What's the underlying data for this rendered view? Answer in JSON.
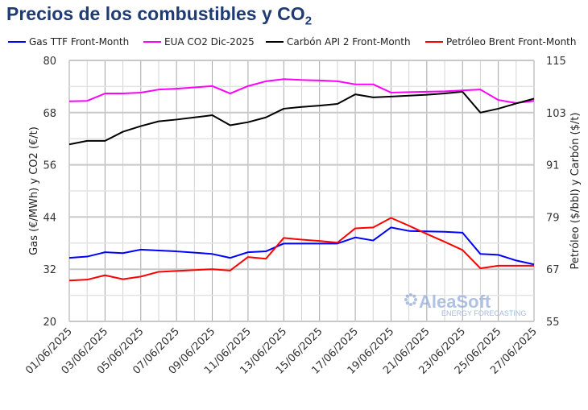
{
  "chart_data": {
    "type": "line",
    "title": "Precios de los combustibles y CO",
    "title_sub": "2",
    "ylabel_left": "Gas (€/MWh) y CO2 (€/t)",
    "ylabel_right": "Petróleo ($/bbl) y Carbón ($/t)",
    "ylim_left": [
      20,
      80
    ],
    "ylim_right": [
      55,
      115
    ],
    "yticks_left": [
      "20",
      "32",
      "44",
      "56",
      "68",
      "80"
    ],
    "yticks_right": [
      "55",
      "67",
      "79",
      "91",
      "103",
      "115"
    ],
    "grid": true,
    "legend_position": "top",
    "x": [
      "01/06/2025",
      "02/06/2025",
      "03/06/2025",
      "04/06/2025",
      "05/06/2025",
      "06/06/2025",
      "07/06/2025",
      "08/06/2025",
      "09/06/2025",
      "10/06/2025",
      "11/06/2025",
      "12/06/2025",
      "13/06/2025",
      "14/06/2025",
      "15/06/2025",
      "16/06/2025",
      "17/06/2025",
      "18/06/2025",
      "19/06/2025",
      "20/06/2025",
      "21/06/2025",
      "22/06/2025",
      "23/06/2025",
      "24/06/2025",
      "25/06/2025",
      "26/06/2025",
      "27/06/2025"
    ],
    "xtick_labels": [
      "01/06/2025",
      "03/06/2025",
      "05/06/2025",
      "07/06/2025",
      "09/06/2025",
      "11/06/2025",
      "13/06/2025",
      "15/06/2025",
      "17/06/2025",
      "19/06/2025",
      "21/06/2025",
      "23/06/2025",
      "25/06/2025",
      "27/06/2025"
    ],
    "series": [
      {
        "name": "Gas TTF Front-Month",
        "axis": "left",
        "color": "#0000ff",
        "values": [
          34.6,
          34.9,
          35.9,
          35.7,
          36.5,
          36.3,
          36.1,
          35.8,
          35.5,
          34.6,
          35.9,
          36.1,
          37.9,
          37.9,
          37.9,
          37.9,
          39.3,
          38.6,
          41.6,
          40.8,
          40.7,
          40.6,
          40.4,
          35.5,
          35.3,
          34.0,
          33.1
        ]
      },
      {
        "name": "EUA CO2 Dic-2025",
        "axis": "left",
        "color": "#ff00ff",
        "values": [
          70.6,
          70.7,
          72.4,
          72.4,
          72.6,
          73.3,
          73.5,
          73.8,
          74.1,
          72.4,
          74.1,
          75.2,
          75.7,
          75.5,
          75.4,
          75.2,
          74.5,
          74.5,
          72.6,
          72.7,
          72.8,
          72.9,
          73.1,
          73.3,
          70.9,
          70.2,
          70.7
        ]
      },
      {
        "name": "Carbón API 2 Front-Month",
        "axis": "right",
        "color": "#000000",
        "values": [
          95.7,
          96.5,
          96.5,
          98.6,
          99.9,
          101.0,
          101.4,
          101.9,
          102.4,
          100.1,
          100.8,
          101.9,
          103.9,
          104.3,
          104.6,
          105.0,
          107.2,
          106.5,
          106.7,
          106.9,
          107.1,
          107.4,
          107.8,
          103.0,
          103.9,
          105.1,
          106.2
        ]
      },
      {
        "name": "Petróleo Brent Front-Month",
        "axis": "right",
        "color": "#ff0000",
        "values": [
          64.4,
          64.6,
          65.6,
          64.7,
          65.3,
          66.4,
          66.6,
          66.8,
          67.0,
          66.7,
          69.8,
          69.4,
          74.2,
          73.8,
          73.5,
          73.1,
          76.4,
          76.6,
          78.8,
          77.0,
          75.1,
          73.3,
          71.4,
          67.2,
          67.8,
          67.8,
          67.8
        ]
      }
    ]
  },
  "watermark": {
    "brand": "AleaSoft",
    "tagline": "ENERGY FORECASTING"
  }
}
